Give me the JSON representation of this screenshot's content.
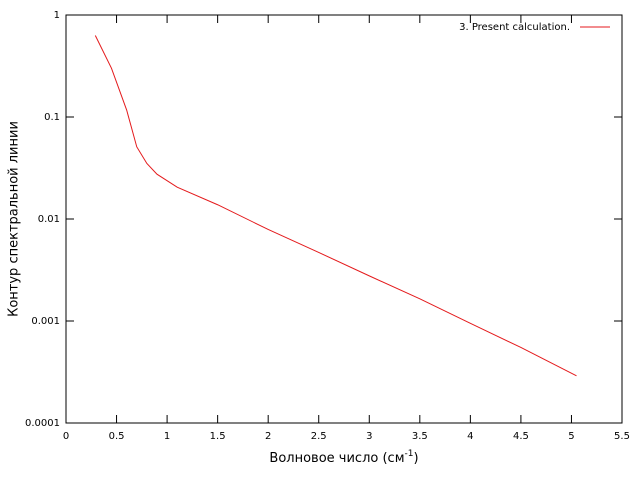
{
  "chart_data": {
    "type": "line",
    "xlabel": {
      "text": "Волновое число (см",
      "sup": "-1",
      "tail": ")"
    },
    "ylabel": "Контур спектральной линии",
    "x": [
      0.29,
      0.45,
      0.6,
      0.7,
      0.8,
      0.9,
      1.1,
      1.5,
      2.0,
      2.5,
      3.0,
      3.5,
      4.0,
      4.5,
      5.05
    ],
    "series": [
      {
        "name": "3. Present calculation.",
        "color": "#e41a1c",
        "values": [
          0.63,
          0.3,
          0.117,
          0.051,
          0.035,
          0.0275,
          0.0205,
          0.0138,
          0.0079,
          0.0047,
          0.00277,
          0.00165,
          0.00095,
          0.00055,
          0.00029
        ]
      }
    ],
    "xlim": [
      0,
      5.5
    ],
    "xticks": [
      0,
      0.5,
      1,
      1.5,
      2,
      2.5,
      3,
      3.5,
      4,
      4.5,
      5,
      5.5
    ],
    "ylim": [
      0.0001,
      1
    ],
    "yticks": [
      0.0001,
      0.001,
      0.01,
      0.1,
      1
    ],
    "ylog": true,
    "grid": false,
    "legend": "top-right"
  }
}
